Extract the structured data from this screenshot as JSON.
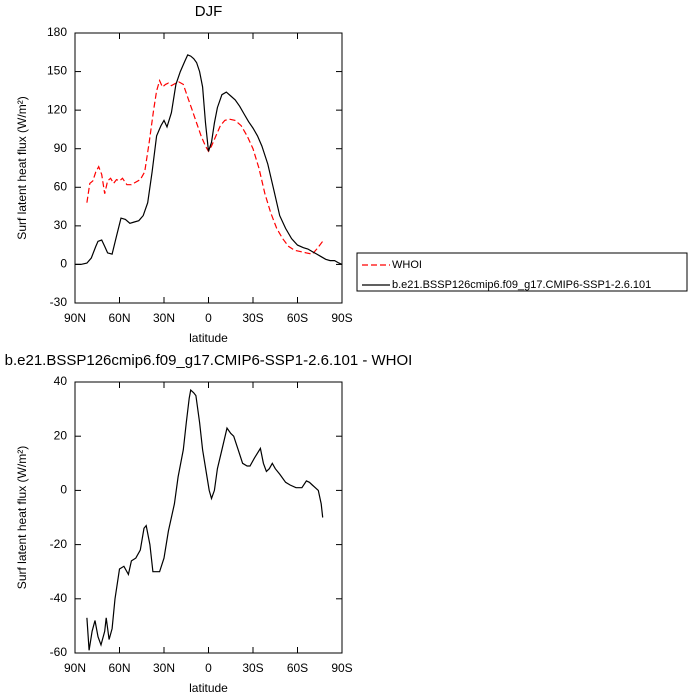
{
  "chart_data": [
    {
      "type": "line",
      "title": "DJF",
      "xlabel": "latitude",
      "ylabel": "Surf latent heat flux (W/m²)",
      "xlim": [
        90,
        -90
      ],
      "xticks": [
        {
          "value": 90,
          "label": "90N"
        },
        {
          "value": 60,
          "label": "60N"
        },
        {
          "value": 30,
          "label": "30N"
        },
        0,
        {
          "value": -30,
          "label": "30S"
        },
        {
          "value": -60,
          "label": "60S"
        },
        {
          "value": -90,
          "label": "90S"
        }
      ],
      "ylim": [
        -30,
        180
      ],
      "yticks": [
        -30,
        0,
        30,
        60,
        90,
        120,
        150,
        180
      ],
      "legend": "outside-right",
      "series": [
        {
          "name": "WHOI",
          "color": "#ff0000",
          "dash": true,
          "x": [
            82,
            80,
            78,
            76,
            74,
            72,
            70,
            68,
            66,
            64,
            62,
            60,
            58,
            55,
            52,
            49,
            46,
            43,
            40,
            37,
            35,
            33,
            31,
            29,
            27,
            25,
            22,
            20,
            17,
            14,
            11,
            8,
            5,
            2,
            0,
            -2,
            -5,
            -8,
            -11,
            -14,
            -18,
            -22,
            -26,
            -30,
            -34,
            -38,
            -42,
            -46,
            -50,
            -54,
            -58,
            -62,
            -66,
            -70,
            -73,
            -75,
            -77
          ],
          "values": [
            48,
            63,
            65,
            72,
            76,
            70,
            55,
            65,
            67,
            63,
            66,
            65,
            67,
            62,
            62,
            64,
            66,
            72,
            95,
            120,
            135,
            143,
            138,
            140,
            141,
            139,
            141,
            142,
            140,
            130,
            120,
            110,
            100,
            92,
            88,
            92,
            100,
            108,
            112,
            113,
            112,
            108,
            100,
            90,
            75,
            55,
            40,
            28,
            20,
            14,
            11,
            10,
            9,
            8,
            12,
            15,
            18
          ]
        },
        {
          "name": "b.e21.BSSP126cmip6.f09_g17.CMIP6-SSP1-2.6.101",
          "color": "#000000",
          "dash": false,
          "x": [
            90,
            86,
            82,
            79,
            76,
            74.5,
            72,
            70,
            68,
            65,
            62,
            59,
            56,
            53,
            50,
            47,
            44,
            41,
            38,
            35,
            32,
            30,
            28,
            25,
            22,
            19,
            16,
            14,
            12,
            10,
            8,
            6,
            4,
            2,
            0,
            -2,
            -4,
            -6,
            -9,
            -12,
            -15,
            -18,
            -21,
            -24,
            -27,
            -30,
            -33,
            -36,
            -40,
            -44,
            -48,
            -52,
            -56,
            -60,
            -64,
            -67,
            -70,
            -73,
            -76,
            -79,
            -82,
            -85,
            -88,
            -90
          ],
          "values": [
            0,
            0,
            1,
            5,
            14,
            18,
            19,
            14,
            9,
            8,
            22,
            36,
            35,
            32,
            33,
            34,
            38,
            48,
            72,
            100,
            108,
            112,
            107,
            118,
            140,
            150,
            158,
            163,
            162,
            160,
            157,
            150,
            138,
            110,
            88,
            95,
            110,
            122,
            132,
            134,
            131,
            128,
            123,
            117,
            111,
            106,
            100,
            92,
            78,
            58,
            38,
            28,
            20,
            15,
            13,
            12,
            10,
            8,
            6,
            4,
            3,
            3,
            1,
            0
          ]
        }
      ]
    },
    {
      "type": "line",
      "title": "b.e21.BSSP126cmip6.f09_g17.CMIP6-SSP1-2.6.101 - WHOI",
      "xlabel": "latitude",
      "ylabel": "Surf latent heat flux (W/m²)",
      "xlim": [
        90,
        -90
      ],
      "xticks": [
        {
          "value": 90,
          "label": "90N"
        },
        {
          "value": 60,
          "label": "60N"
        },
        {
          "value": 30,
          "label": "30N"
        },
        0,
        {
          "value": -30,
          "label": "30S"
        },
        {
          "value": -60,
          "label": "60S"
        },
        {
          "value": -90,
          "label": "90S"
        }
      ],
      "ylim": [
        -60,
        40
      ],
      "yticks": [
        -60,
        -40,
        -20,
        0,
        20,
        40
      ],
      "series": [
        {
          "color": "#000000",
          "dash": false,
          "x": [
            82,
            80.5,
            78.5,
            76.5,
            74.5,
            72.5,
            70,
            69,
            67,
            65,
            63,
            60,
            57,
            54,
            52,
            49,
            46,
            43.5,
            42,
            39.5,
            37.5,
            35,
            33,
            30,
            27,
            23,
            20.5,
            17,
            15,
            13,
            12,
            10,
            8.5,
            6,
            4,
            1,
            -0.5,
            -2,
            -4,
            -6,
            -9,
            -12.5,
            -15,
            -17,
            -20,
            -23,
            -26,
            -28,
            -31,
            -35,
            -37,
            -39,
            -41,
            -43,
            -45,
            -48,
            -52,
            -55,
            -59,
            -63,
            -66,
            -68,
            -70,
            -72,
            -74,
            -76,
            -77
          ],
          "values": [
            -47,
            -59,
            -52,
            -48,
            -54,
            -57,
            -52,
            -47,
            -55,
            -51,
            -40,
            -29,
            -28,
            -31,
            -26,
            -25,
            -22,
            -14,
            -13,
            -20,
            -30,
            -30,
            -30,
            -25,
            -15,
            -5,
            5,
            15,
            25,
            34,
            37,
            36,
            35,
            25,
            15,
            5,
            0,
            -3,
            0,
            8,
            15,
            23,
            21,
            20,
            15,
            10,
            9,
            9,
            12,
            15.5,
            10,
            7,
            8,
            10,
            8,
            6,
            3,
            2,
            1,
            1,
            3.5,
            3,
            2,
            1,
            0,
            -5,
            -10
          ]
        }
      ]
    }
  ]
}
